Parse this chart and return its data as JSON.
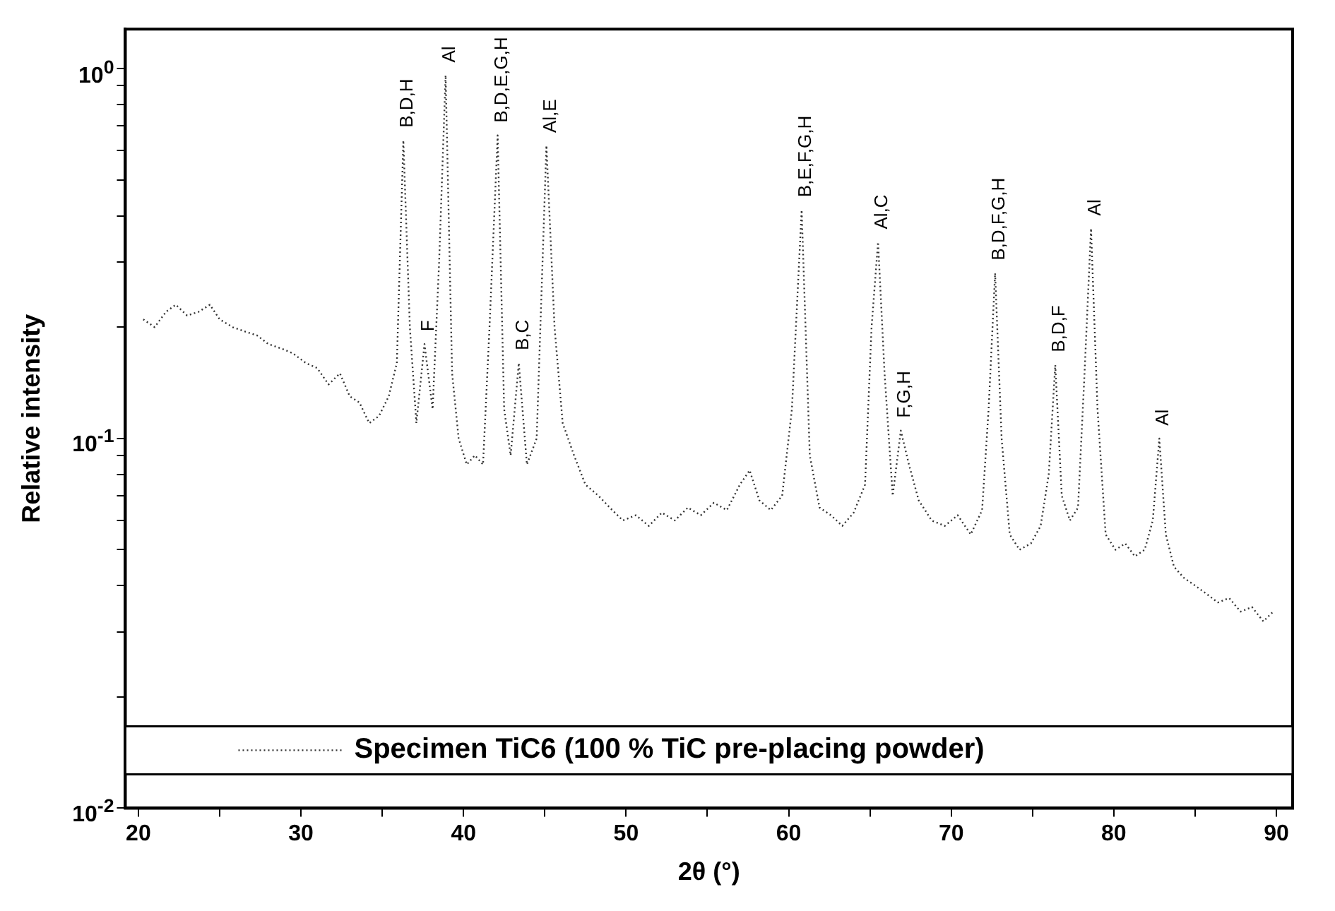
{
  "chart_data": {
    "type": "line",
    "xlabel": "2θ (°)",
    "ylabel": "Relative intensity",
    "log": "y",
    "grid": false,
    "legend": "bottom",
    "marker": "none",
    "line_style": "dotted",
    "xlim": [
      19.2,
      91
    ],
    "ylim": [
      0.01,
      1.28
    ],
    "xticks": [
      20,
      {
        "value": 25,
        "label": null
      },
      30,
      {
        "value": 35,
        "label": null
      },
      40,
      {
        "value": 45,
        "label": null
      },
      50,
      {
        "value": 55,
        "label": null
      },
      60,
      {
        "value": 65,
        "label": null
      },
      70,
      {
        "value": 75,
        "label": null
      },
      80,
      {
        "value": 85,
        "label": null
      },
      90
    ],
    "yticks": [
      {
        "value": 0.01,
        "label": "10$^{-2}$"
      },
      {
        "value": 0.02,
        "label": null
      },
      {
        "value": 0.03,
        "label": null
      },
      {
        "value": 0.04,
        "label": null
      },
      {
        "value": 0.05,
        "label": null
      },
      {
        "value": 0.06,
        "label": null
      },
      {
        "value": 0.07,
        "label": null
      },
      {
        "value": 0.08,
        "label": null
      },
      {
        "value": 0.09,
        "label": null
      },
      {
        "value": 0.1,
        "label": "10$^{-1}$"
      },
      {
        "value": 0.2,
        "label": null
      },
      {
        "value": 0.3,
        "label": null
      },
      {
        "value": 0.4,
        "label": null
      },
      {
        "value": 0.5,
        "label": null
      },
      {
        "value": 0.6,
        "label": null
      },
      {
        "value": 0.7,
        "label": null
      },
      {
        "value": 0.8,
        "label": null
      },
      {
        "value": 0.9,
        "label": null
      },
      {
        "value": 1,
        "label": "10$^{0}$"
      }
    ],
    "series": [
      {
        "name": "Specimen TiC6 (100 % TiC pre-placing powder)",
        "color": "#333333",
        "x": [
          20.3,
          21,
          21.7,
          22.3,
          23,
          23.7,
          24.4,
          25,
          25.8,
          26.5,
          27.3,
          28,
          28.8,
          29.5,
          30.3,
          31,
          31.7,
          32.4,
          33,
          33.6,
          34.2,
          34.8,
          35.4,
          35.9,
          36.3,
          36.7,
          37.1,
          37.6,
          38.1,
          38.5,
          38.9,
          39.3,
          39.7,
          40.2,
          40.7,
          41.2,
          41.6,
          42.1,
          42.5,
          42.9,
          43.4,
          43.9,
          44.5,
          45.1,
          45.6,
          46.1,
          46.8,
          47.5,
          48.3,
          49,
          49.8,
          50.6,
          51.4,
          52.2,
          53,
          53.8,
          54.6,
          55.4,
          56.2,
          57,
          57.6,
          58.2,
          58.9,
          59.6,
          60.2,
          60.8,
          61.3,
          61.9,
          62.6,
          63.3,
          64,
          64.7,
          65.1,
          65.5,
          65.9,
          66.4,
          66.9,
          67.4,
          68,
          68.8,
          69.6,
          70.4,
          71.2,
          71.9,
          72.3,
          72.7,
          73.1,
          73.6,
          74.2,
          74.9,
          75.5,
          76,
          76.4,
          76.8,
          77.3,
          77.8,
          78.2,
          78.6,
          79,
          79.5,
          80.1,
          80.7,
          81.3,
          81.9,
          82.4,
          82.8,
          83.2,
          83.7,
          84.3,
          85,
          85.7,
          86.4,
          87.1,
          87.8,
          88.5,
          89.2,
          89.8
        ],
        "values": [
          0.21,
          0.2,
          0.22,
          0.23,
          0.215,
          0.22,
          0.23,
          0.21,
          0.2,
          0.195,
          0.19,
          0.18,
          0.175,
          0.17,
          0.16,
          0.155,
          0.14,
          0.15,
          0.13,
          0.125,
          0.11,
          0.115,
          0.13,
          0.16,
          0.64,
          0.2,
          0.11,
          0.18,
          0.12,
          0.3,
          0.96,
          0.15,
          0.1,
          0.085,
          0.09,
          0.085,
          0.2,
          0.66,
          0.12,
          0.09,
          0.16,
          0.085,
          0.1,
          0.62,
          0.2,
          0.11,
          0.09,
          0.075,
          0.07,
          0.065,
          0.06,
          0.062,
          0.058,
          0.063,
          0.06,
          0.065,
          0.062,
          0.067,
          0.064,
          0.075,
          0.082,
          0.068,
          0.064,
          0.07,
          0.12,
          0.415,
          0.09,
          0.065,
          0.062,
          0.058,
          0.063,
          0.075,
          0.2,
          0.34,
          0.15,
          0.07,
          0.105,
          0.085,
          0.068,
          0.06,
          0.058,
          0.062,
          0.055,
          0.064,
          0.12,
          0.28,
          0.1,
          0.055,
          0.05,
          0.052,
          0.058,
          0.08,
          0.158,
          0.07,
          0.06,
          0.065,
          0.15,
          0.37,
          0.12,
          0.055,
          0.05,
          0.052,
          0.048,
          0.05,
          0.06,
          0.1,
          0.055,
          0.045,
          0.042,
          0.04,
          0.038,
          0.036,
          0.037,
          0.034,
          0.035,
          0.032,
          0.034
        ]
      }
    ],
    "annotations": [
      {
        "text": "B,D,H",
        "x": 36.3,
        "y": 0.64
      },
      {
        "text": "F",
        "x": 37.6,
        "y": 0.18
      },
      {
        "text": "Al",
        "x": 38.9,
        "y": 0.96
      },
      {
        "text": "B,D,E,G,H",
        "x": 42.1,
        "y": 0.66
      },
      {
        "text": "B,C",
        "x": 43.4,
        "y": 0.16
      },
      {
        "text": "Al,E",
        "x": 45.1,
        "y": 0.62
      },
      {
        "text": "B,E,F,G,H",
        "x": 60.8,
        "y": 0.415
      },
      {
        "text": "Al,C",
        "x": 65.5,
        "y": 0.34
      },
      {
        "text": "F,G,H",
        "x": 66.9,
        "y": 0.105
      },
      {
        "text": "B,D,F,G,H",
        "x": 72.7,
        "y": 0.28
      },
      {
        "text": "B,D,F",
        "x": 76.4,
        "y": 0.158
      },
      {
        "text": "Al",
        "x": 78.6,
        "y": 0.37
      },
      {
        "text": "Al",
        "x": 82.8,
        "y": 0.1
      }
    ]
  }
}
